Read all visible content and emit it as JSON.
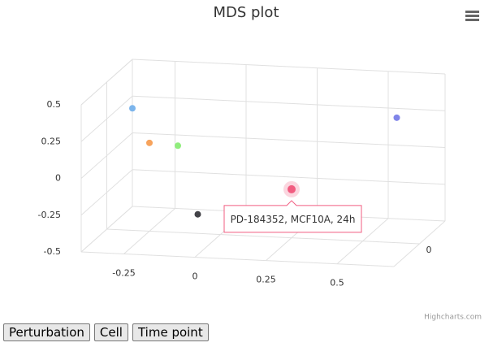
{
  "chart_data": {
    "type": "scatter3d",
    "title": "MDS plot",
    "x": [
      -0.31,
      -0.25,
      -0.15,
      -0.08,
      0.25,
      0.62
    ],
    "values": [
      0.33,
      0.1,
      0.09,
      -0.37,
      -0.17,
      0.35
    ],
    "z": [
      0,
      0,
      0,
      0,
      0,
      0
    ],
    "colors": [
      "#7cb5ec",
      "#f7a35c",
      "#90ed7d",
      "#434348",
      "#f15c80",
      "#8085e9"
    ],
    "xlim": [
      -0.4,
      0.7
    ],
    "xticks": [
      -0.25,
      0,
      0.25,
      0.5
    ],
    "ylim": [
      -0.5,
      0.5
    ],
    "yticks": [
      0.5,
      0.25,
      0,
      -0.25,
      -0.5
    ],
    "zlim": [
      -0.2,
      0.2
    ],
    "zticks": [
      0
    ],
    "grid": true,
    "tooltip": {
      "point": 4,
      "text": "PD-184352, MCF10A, 24h"
    },
    "credits": "Highcharts.com"
  },
  "buttons": [
    "Perturbation",
    "Cell",
    "Time point"
  ]
}
